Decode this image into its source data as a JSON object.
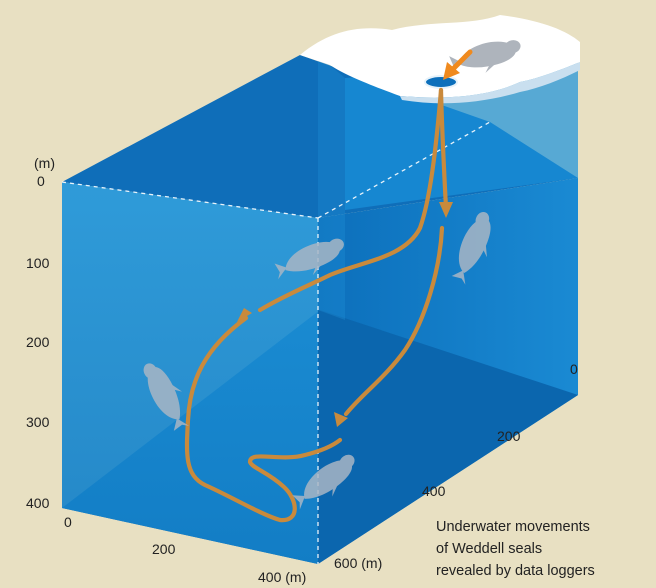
{
  "diagram": {
    "depth_axis": {
      "unit_label": "(m)",
      "ticks": [
        "0",
        "100",
        "200",
        "300",
        "400"
      ]
    },
    "front_axis": {
      "ticks": [
        "0",
        "200",
        "400 (m)"
      ]
    },
    "side_axis": {
      "ticks": [
        "0",
        "200",
        "400",
        "600 (m)"
      ]
    },
    "caption": {
      "lines": [
        "Underwater movements",
        "of Weddell seals",
        "revealed by data loggers"
      ]
    },
    "colors": {
      "background": "#e8e0c2",
      "water_front": "#1b8fd6",
      "water_side": "#0f79c4",
      "water_bottom": "#0a63ad",
      "path": "#c98a3c",
      "entry_arrow": "#f08a1e",
      "ice": "#ffffff",
      "seal": "#aeb4bc"
    },
    "icons": [
      "seal-icon",
      "ice-hole-icon",
      "entry-arrow-icon"
    ]
  }
}
